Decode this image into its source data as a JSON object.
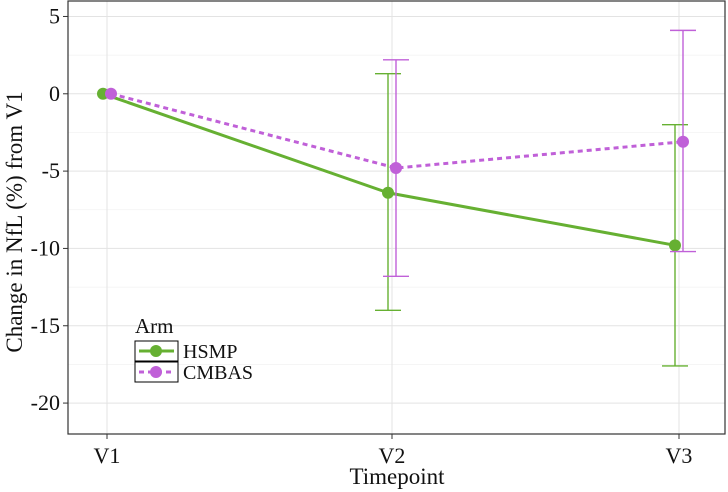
{
  "chart_data": {
    "type": "line",
    "title": "",
    "xlabel": "Timepoint",
    "ylabel": "Change in NfL (%) from V1",
    "categories": [
      "V1",
      "V2",
      "V3"
    ],
    "ylim": [
      -22,
      6
    ],
    "yticks": [
      5,
      0,
      -5,
      -10,
      -15,
      -20
    ],
    "ytick_labels": [
      "5",
      "0",
      "-5",
      "-10",
      "-15",
      "-20"
    ],
    "grid": true,
    "legend": {
      "title": "Arm",
      "position": "bottom-left"
    },
    "series": [
      {
        "name": "HSMP",
        "color": "#66b032",
        "line_style": "solid",
        "values": [
          0,
          -6.4,
          -9.8
        ],
        "err_low": [
          0,
          -14.0,
          -17.6
        ],
        "err_high": [
          0,
          1.3,
          -2.0
        ]
      },
      {
        "name": "CMBAS",
        "color": "#c060d8",
        "line_style": "dashed",
        "values": [
          0,
          -4.8,
          -3.1
        ],
        "err_low": [
          0,
          -11.8,
          -10.2
        ],
        "err_high": [
          0,
          2.2,
          4.1
        ]
      }
    ]
  }
}
